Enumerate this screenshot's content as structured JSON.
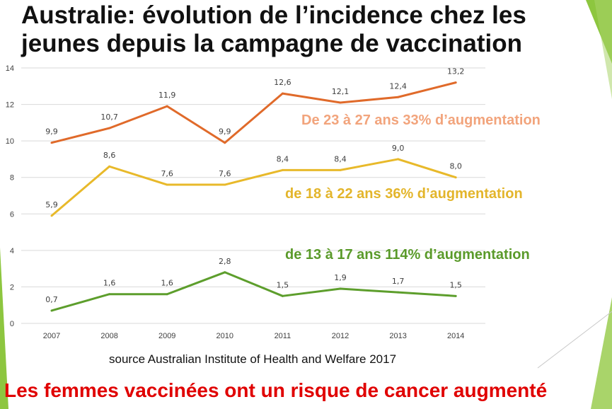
{
  "slide": {
    "title": "Australie: évolution de l’incidence chez les jeunes depuis la campagne de vaccination",
    "source": "source Australian Institute of Health and Welfare 2017",
    "conclusion": "Les femmes vaccinées ont un risque de cancer augmenté",
    "colors": {
      "accent_green": "#8dc63f",
      "conclusion_red": "#e00000"
    }
  },
  "chart_data": {
    "type": "line",
    "title": "",
    "xlabel": "",
    "ylabel": "",
    "x": [
      "2007",
      "2008",
      "2009",
      "2010",
      "2011",
      "2012",
      "2013",
      "2014"
    ],
    "ylim": [
      0,
      14
    ],
    "yticks": [
      0,
      2,
      4,
      6,
      8,
      10,
      12,
      14
    ],
    "grid": true,
    "series": [
      {
        "values": [
          9.9,
          10.7,
          11.9,
          9.9,
          12.6,
          12.1,
          12.4,
          13.2
        ],
        "labels": [
          "9,9",
          "10,7",
          "11,9",
          "9,9",
          "12,6",
          "12,1",
          "12,4",
          "13,2"
        ],
        "color": "#e06a2a",
        "annotation": "De 23 à 27 ans 33% d’augmentation",
        "annotation_color": "#f2a47c"
      },
      {
        "values": [
          5.9,
          8.6,
          7.6,
          7.6,
          8.4,
          8.4,
          9.0,
          8.0
        ],
        "labels": [
          "5,9",
          "8,6",
          "7,6",
          "7,6",
          "8,4",
          "8,4",
          "9,0",
          "8,0"
        ],
        "color": "#e8b92a",
        "annotation": "de 18 à 22 ans 36% d’augmentation",
        "annotation_color": "#e3b52b"
      },
      {
        "values": [
          0.7,
          1.6,
          1.6,
          2.8,
          1.5,
          1.9,
          1.7,
          1.5
        ],
        "labels": [
          "0,7",
          "1,6",
          "1,6",
          "2,8",
          "1,5",
          "1,9",
          "1,7",
          "1,5"
        ],
        "color": "#5d9e2c",
        "annotation": "de 13 à 17 ans 114% d’augmentation",
        "annotation_color": "#5a9a2a"
      }
    ]
  }
}
